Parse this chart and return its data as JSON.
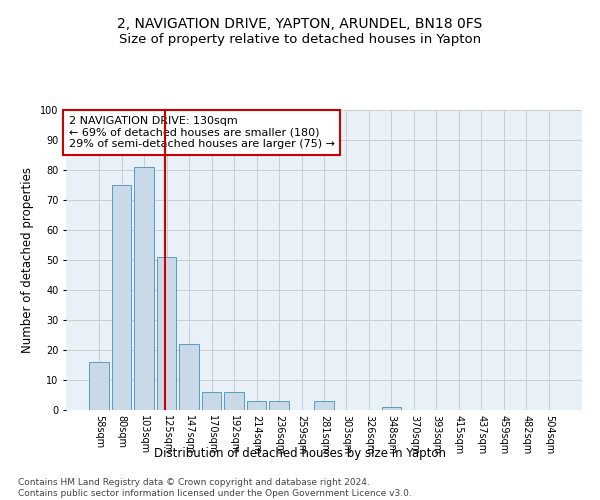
{
  "title": "2, NAVIGATION DRIVE, YAPTON, ARUNDEL, BN18 0FS",
  "subtitle": "Size of property relative to detached houses in Yapton",
  "xlabel": "Distribution of detached houses by size in Yapton",
  "ylabel": "Number of detached properties",
  "categories": [
    "58sqm",
    "80sqm",
    "103sqm",
    "125sqm",
    "147sqm",
    "170sqm",
    "192sqm",
    "214sqm",
    "236sqm",
    "259sqm",
    "281sqm",
    "303sqm",
    "326sqm",
    "348sqm",
    "370sqm",
    "393sqm",
    "415sqm",
    "437sqm",
    "459sqm",
    "482sqm",
    "504sqm"
  ],
  "values": [
    16,
    75,
    81,
    51,
    22,
    6,
    6,
    3,
    3,
    0,
    3,
    0,
    0,
    1,
    0,
    0,
    0,
    0,
    0,
    0,
    0
  ],
  "bar_color": "#c9d9e8",
  "bar_edge_color": "#5a9bc0",
  "vline_x": 2.925,
  "vline_color": "#cc0000",
  "annotation_text": "2 NAVIGATION DRIVE: 130sqm\n← 69% of detached houses are smaller (180)\n29% of semi-detached houses are larger (75) →",
  "annotation_box_color": "#ffffff",
  "annotation_box_edge": "#cc0000",
  "ylim": [
    0,
    100
  ],
  "yticks": [
    0,
    10,
    20,
    30,
    40,
    50,
    60,
    70,
    80,
    90,
    100
  ],
  "grid_color": "#cccccc",
  "background_color": "#e8f0f8",
  "footer_text": "Contains HM Land Registry data © Crown copyright and database right 2024.\nContains public sector information licensed under the Open Government Licence v3.0.",
  "title_fontsize": 10,
  "subtitle_fontsize": 9.5,
  "xlabel_fontsize": 8.5,
  "ylabel_fontsize": 8.5,
  "tick_fontsize": 7,
  "annotation_fontsize": 8,
  "footer_fontsize": 6.5
}
